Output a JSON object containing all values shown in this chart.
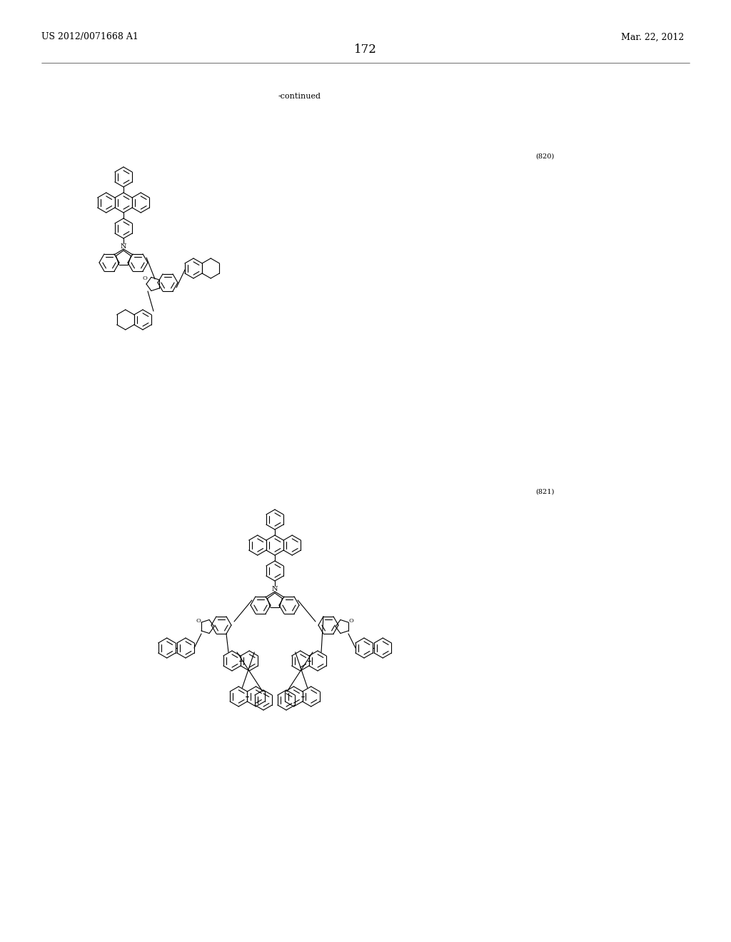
{
  "page_number": "172",
  "patent_number": "US 2012/0071668 A1",
  "date": "Mar. 22, 2012",
  "continued_label": "-continued",
  "compound_820_label": "(820)",
  "compound_821_label": "(821)",
  "background_color": "#ffffff",
  "line_color": "#000000",
  "text_color": "#000000",
  "font_size_header": 9,
  "font_size_page": 12,
  "font_size_label": 7,
  "font_size_continued": 8,
  "lw": 0.8,
  "r_hex": 14,
  "r_inner": 9
}
